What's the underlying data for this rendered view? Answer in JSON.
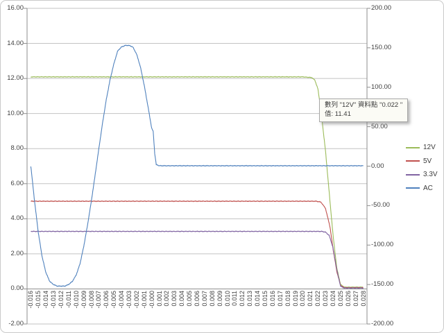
{
  "tooltip": {
    "line1": "數列 \"12V\" 資料點 \"0.022 \"",
    "line2": "值: 11.41"
  },
  "colors": {
    "gridline": "#c3c3c3",
    "axis_line": "#8e8e8e",
    "label_text": "#404040"
  },
  "chart_data": {
    "type": "line",
    "title": "",
    "xlabel": "",
    "ylabel_left": "",
    "ylabel_right": "",
    "grid": "horizontal-only",
    "legend_position": "right",
    "left_axis": {
      "min": -2,
      "max": 16,
      "step": 2,
      "ticks": [
        "16.00",
        "14.00",
        "12.00",
        "10.00",
        "8.00",
        "6.00",
        "4.00",
        "2.00",
        "0.00",
        "-2.00"
      ]
    },
    "right_axis": {
      "min": -200,
      "max": 200,
      "step": 50,
      "ticks": [
        "200.00",
        "150.00",
        "100.00",
        "50.00",
        "0.00",
        "-50.00",
        "-100.00",
        "-150.00",
        "-200.00"
      ]
    },
    "x_axis": {
      "start": -0.016,
      "end": 0.028,
      "step": 0.001,
      "labels": [
        "-0.016",
        "-0.015",
        "-0.014",
        "-0.013",
        "-0.012",
        "-0.011",
        "-0.010",
        "-0.009",
        "-0.008",
        "-0.007",
        "-0.006",
        "-0.005",
        "-0.004",
        "-0.003",
        "-0.002",
        "-0.001",
        "-0.000",
        "0.001",
        "0.002",
        "0.003",
        "0.004",
        "0.005",
        "0.006",
        "0.007",
        "0.008",
        "0.009",
        "0.010",
        "0.011",
        "0.012",
        "0.013",
        "0.014",
        "0.015",
        "0.016",
        "0.017",
        "0.018",
        "0.019",
        "0.020",
        "0.021",
        "0.022",
        "0.023",
        "0.024",
        "0.025",
        "0.026",
        "0.027",
        "0.028"
      ]
    },
    "highlighted_point": {
      "series": "12V",
      "x": 0.022,
      "value": 11.41
    },
    "series": [
      {
        "name": "12V",
        "color": "#9bbb59",
        "axis": "left",
        "points": [
          [
            -0.016,
            12.09
          ],
          [
            0.02,
            12.09
          ],
          [
            0.0212,
            12.05
          ],
          [
            0.0216,
            11.9
          ],
          [
            0.022,
            11.41
          ],
          [
            0.0224,
            10.2
          ],
          [
            0.023,
            7.9
          ],
          [
            0.0236,
            5.0
          ],
          [
            0.024,
            3.1
          ],
          [
            0.0245,
            1.2
          ],
          [
            0.025,
            0.25
          ],
          [
            0.0255,
            0.1
          ],
          [
            0.028,
            0.1
          ]
        ]
      },
      {
        "name": "5V",
        "color": "#c0504d",
        "axis": "left",
        "points": [
          [
            -0.016,
            5.0
          ],
          [
            0.0218,
            5.0
          ],
          [
            0.0224,
            4.95
          ],
          [
            0.023,
            4.6
          ],
          [
            0.0236,
            3.55
          ],
          [
            0.024,
            2.3
          ],
          [
            0.0245,
            1.0
          ],
          [
            0.025,
            0.2
          ],
          [
            0.0255,
            0.07
          ],
          [
            0.028,
            0.07
          ]
        ]
      },
      {
        "name": "3.3V",
        "color": "#8064a2",
        "axis": "left",
        "points": [
          [
            -0.016,
            3.28
          ],
          [
            0.0225,
            3.28
          ],
          [
            0.023,
            3.24
          ],
          [
            0.0235,
            3.05
          ],
          [
            0.024,
            2.35
          ],
          [
            0.0245,
            1.1
          ],
          [
            0.025,
            0.15
          ],
          [
            0.0255,
            0.05
          ],
          [
            0.028,
            0.05
          ]
        ]
      },
      {
        "name": "AC",
        "color": "#4f81bd",
        "axis": "right",
        "points": [
          [
            -0.016,
            0
          ],
          [
            -0.0155,
            -45
          ],
          [
            -0.015,
            -85
          ],
          [
            -0.0145,
            -115
          ],
          [
            -0.014,
            -135
          ],
          [
            -0.0135,
            -146
          ],
          [
            -0.013,
            -150
          ],
          [
            -0.0125,
            -152
          ],
          [
            -0.012,
            -152
          ],
          [
            -0.0115,
            -152
          ],
          [
            -0.011,
            -150
          ],
          [
            -0.0105,
            -146
          ],
          [
            -0.01,
            -138
          ],
          [
            -0.0095,
            -124
          ],
          [
            -0.009,
            -102
          ],
          [
            -0.0085,
            -75
          ],
          [
            -0.008,
            -45
          ],
          [
            -0.0075,
            -12
          ],
          [
            -0.007,
            22
          ],
          [
            -0.0065,
            55
          ],
          [
            -0.006,
            85
          ],
          [
            -0.0055,
            110
          ],
          [
            -0.005,
            130
          ],
          [
            -0.0045,
            146
          ],
          [
            -0.004,
            151
          ],
          [
            -0.0035,
            153
          ],
          [
            -0.003,
            153
          ],
          [
            -0.0025,
            151
          ],
          [
            -0.002,
            142
          ],
          [
            -0.0015,
            126
          ],
          [
            -0.001,
            103
          ],
          [
            -0.0005,
            76
          ],
          [
            0.0,
            48
          ],
          [
            0.0002,
            44
          ],
          [
            0.0004,
            16
          ],
          [
            0.0006,
            2
          ],
          [
            0.001,
            0.5
          ],
          [
            0.028,
            0.5
          ]
        ]
      }
    ]
  }
}
